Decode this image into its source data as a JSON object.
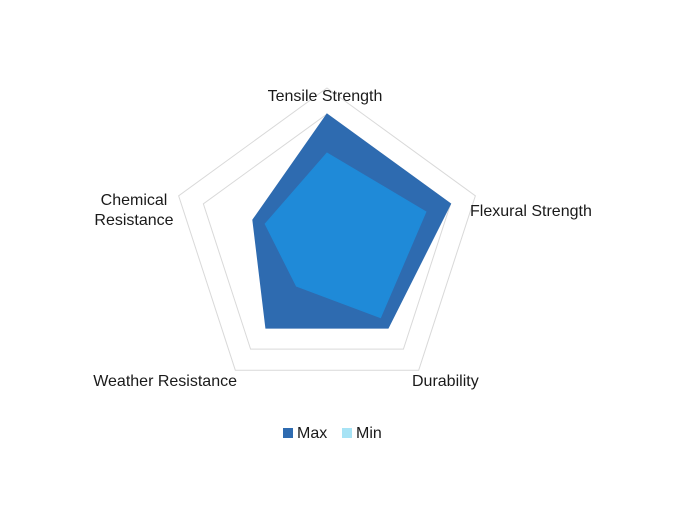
{
  "chart_data": {
    "type": "radar",
    "title": "",
    "axes": [
      {
        "label": "Tensile Strength"
      },
      {
        "label": "Flexural Strength"
      },
      {
        "label": "Durability"
      },
      {
        "label": "Weather Resistance"
      },
      {
        "label": "Chemical Resistance",
        "lines": [
          "Chemical",
          "Resistance"
        ]
      }
    ],
    "max_value": 5,
    "grid_levels": [
      5,
      6
    ],
    "grid_color": "#d9d9d9",
    "series": [
      {
        "name": "Max",
        "values": [
          5,
          5,
          4,
          4,
          3
        ],
        "color": "#2e6bb0"
      },
      {
        "name": "Min",
        "values": [
          3.5,
          4,
          3.5,
          2,
          2.5
        ],
        "color": "#1f8ad8"
      }
    ],
    "legend": {
      "position": "bottom",
      "items": [
        {
          "name": "Max",
          "color": "#2e6bb0"
        },
        {
          "name": "Min",
          "color": "#a7e3f5"
        }
      ]
    }
  }
}
